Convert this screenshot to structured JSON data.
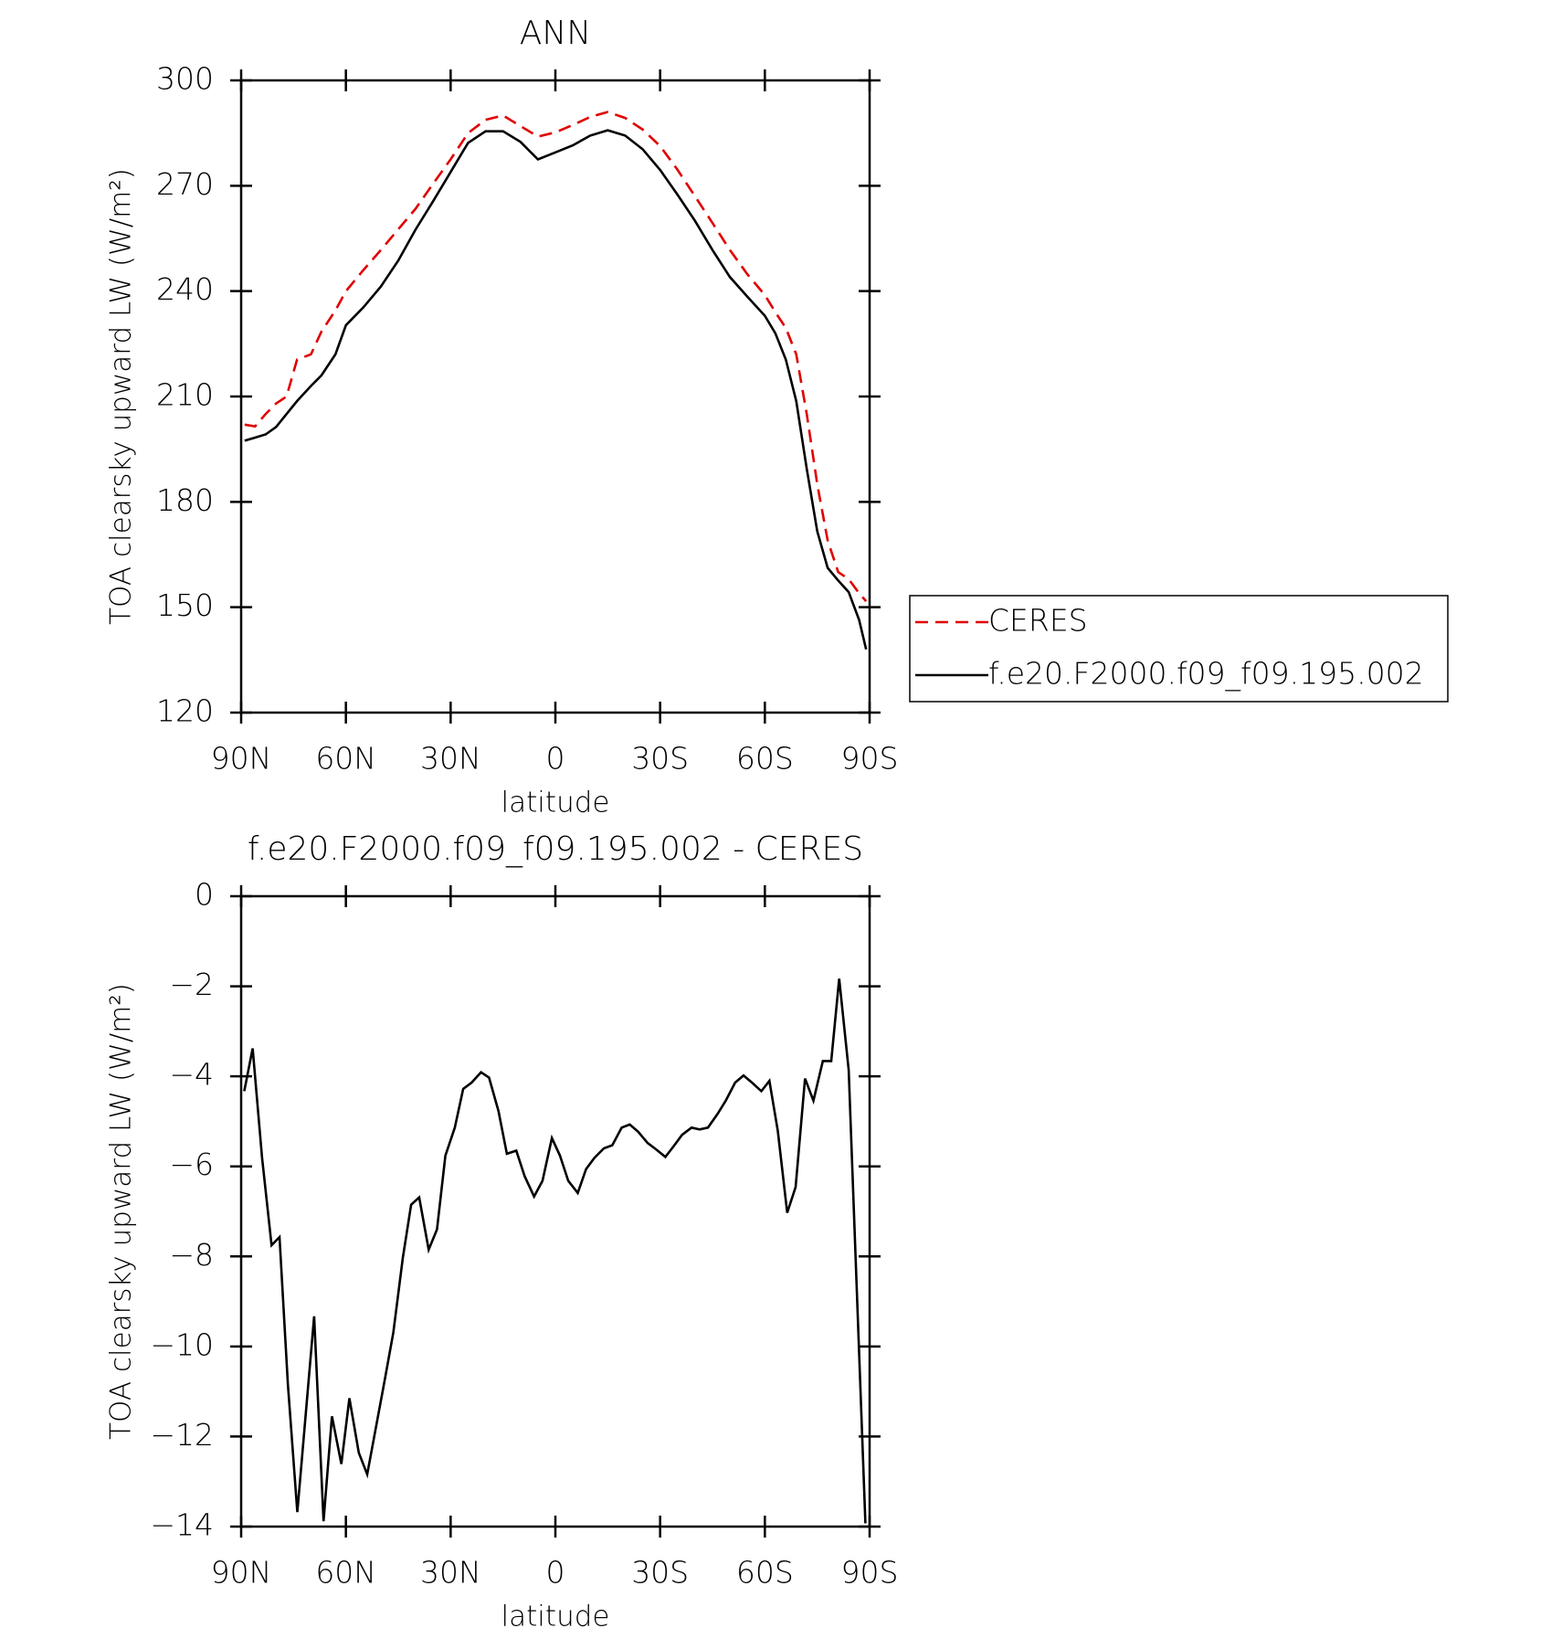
{
  "chart_data": [
    {
      "type": "line",
      "title": "ANN",
      "xlabel": "latitude",
      "ylabel": "TOA clearsky upward LW (W/m²)",
      "x": [
        89,
        86,
        83,
        80,
        77,
        74,
        70,
        67,
        63,
        60,
        55,
        50,
        45,
        40,
        35,
        30,
        25,
        20,
        15,
        10,
        5,
        0,
        -5,
        -10,
        -15,
        -20,
        -25,
        -30,
        -35,
        -40,
        -45,
        -50,
        -55,
        -60,
        -63,
        -66,
        -69,
        -72,
        -75,
        -78,
        -81,
        -84,
        -87,
        -89
      ],
      "series": [
        {
          "name": "CERES",
          "color": "#e00000",
          "linestyle": "dashed",
          "values": [
            202,
            201.5,
            205,
            208,
            210,
            220.5,
            222,
            228.5,
            234.5,
            240,
            246,
            251.7,
            257.6,
            263.5,
            270.6,
            277.5,
            285,
            288.8,
            290,
            287,
            284,
            285.2,
            287.3,
            289.6,
            291,
            289.3,
            286,
            281.3,
            274.5,
            267,
            259.4,
            251.7,
            244.8,
            238.9,
            234,
            229.5,
            222,
            205,
            185,
            169,
            160,
            158,
            154,
            151.7
          ]
        },
        {
          "name": "f.e20.F2000.f09_f09.195.002",
          "color": "#000000",
          "linestyle": "solid",
          "values": [
            197.4,
            198.3,
            199.2,
            201.3,
            205,
            208.7,
            213,
            216,
            222,
            230.3,
            235.4,
            241.3,
            248.7,
            257.6,
            265.6,
            273.9,
            282.2,
            285.5,
            285.5,
            282.5,
            277.5,
            279.5,
            281.5,
            284.3,
            285.8,
            284.3,
            280.4,
            274.5,
            267.4,
            260,
            251.7,
            244,
            238.4,
            233,
            228,
            220.5,
            208.7,
            189.4,
            171.6,
            161.2,
            157.6,
            154.3,
            146.4,
            138
          ]
        }
      ],
      "xlim": [
        90,
        -90
      ],
      "xticks": [
        {
          "value": 90,
          "label": "90N"
        },
        {
          "value": 60,
          "label": "60N"
        },
        {
          "value": 30,
          "label": "30N"
        },
        0,
        {
          "value": -30,
          "label": "30S"
        },
        {
          "value": -60,
          "label": "60S"
        },
        {
          "value": -90,
          "label": "90S"
        }
      ],
      "ylim": [
        120,
        300
      ],
      "yticks": [
        120,
        150,
        180,
        210,
        240,
        270,
        300
      ],
      "legend": "right"
    },
    {
      "type": "line",
      "title": "f.e20.F2000.f09_f09.195.002 - CERES",
      "xlabel": "latitude",
      "ylabel": "TOA clearsky upward LW (W/m²)",
      "x": [
        89.1,
        86.7,
        84.0,
        81.3,
        79.0,
        76.6,
        73.9,
        69.1,
        66.4,
        64.0,
        61.3,
        59.0,
        56.3,
        53.9,
        48.8,
        46.4,
        43.7,
        41.3,
        39.0,
        36.3,
        33.9,
        31.5,
        28.8,
        26.4,
        24.0,
        21.3,
        19.0,
        16.3,
        13.9,
        11.2,
        8.8,
        6.1,
        3.7,
        1.0,
        -1.3,
        -3.7,
        -6.4,
        -8.8,
        -11.2,
        -13.9,
        -16.3,
        -19.0,
        -21.3,
        -23.7,
        -26.4,
        -28.8,
        -31.5,
        -33.9,
        -36.3,
        -39.0,
        -41.3,
        -43.7,
        -46.4,
        -48.8,
        -51.5,
        -53.9,
        -56.3,
        -59.0,
        -61.3,
        -63.7,
        -66.4,
        -68.8,
        -71.5,
        -73.9,
        -76.6,
        -79.0,
        -81.3,
        -84.0,
        -88.8
      ],
      "series": [
        {
          "color": "#000000",
          "linestyle": "solid",
          "values": [
            -4.33,
            -3.38,
            -5.81,
            -7.75,
            -7.57,
            -10.85,
            -13.68,
            -9.33,
            -13.88,
            -11.55,
            -12.61,
            -11.15,
            -12.36,
            -12.84,
            -10.71,
            -9.69,
            -8.03,
            -6.85,
            -6.69,
            -7.85,
            -7.4,
            -5.76,
            -5.14,
            -4.28,
            -4.14,
            -3.91,
            -4.03,
            -4.77,
            -5.72,
            -5.65,
            -6.22,
            -6.67,
            -6.32,
            -5.37,
            -5.76,
            -6.32,
            -6.59,
            -6.06,
            -5.81,
            -5.6,
            -5.53,
            -5.14,
            -5.07,
            -5.23,
            -5.48,
            -5.62,
            -5.79,
            -5.55,
            -5.3,
            -5.14,
            -5.18,
            -5.14,
            -4.84,
            -4.54,
            -4.14,
            -3.98,
            -4.14,
            -4.33,
            -4.1,
            -5.21,
            -7.03,
            -6.46,
            -4.05,
            -4.54,
            -3.66,
            -3.66,
            -1.83,
            -3.86,
            -13.93
          ]
        }
      ],
      "xlim": [
        90,
        -90
      ],
      "xticks": [
        {
          "value": 90,
          "label": "90N"
        },
        {
          "value": 60,
          "label": "60N"
        },
        {
          "value": 30,
          "label": "30N"
        },
        0,
        {
          "value": -30,
          "label": "30S"
        },
        {
          "value": -60,
          "label": "60S"
        },
        {
          "value": -90,
          "label": "90S"
        }
      ],
      "ylim": [
        -14,
        0
      ],
      "yticks": [
        {
          "value": -14,
          "label": "−14"
        },
        {
          "value": -12,
          "label": "−12"
        },
        {
          "value": -10,
          "label": "−10"
        },
        {
          "value": -8,
          "label": "−8"
        },
        {
          "value": -6,
          "label": "−6"
        },
        {
          "value": -4,
          "label": "−4"
        },
        {
          "value": -2,
          "label": "−2"
        },
        0
      ]
    }
  ]
}
